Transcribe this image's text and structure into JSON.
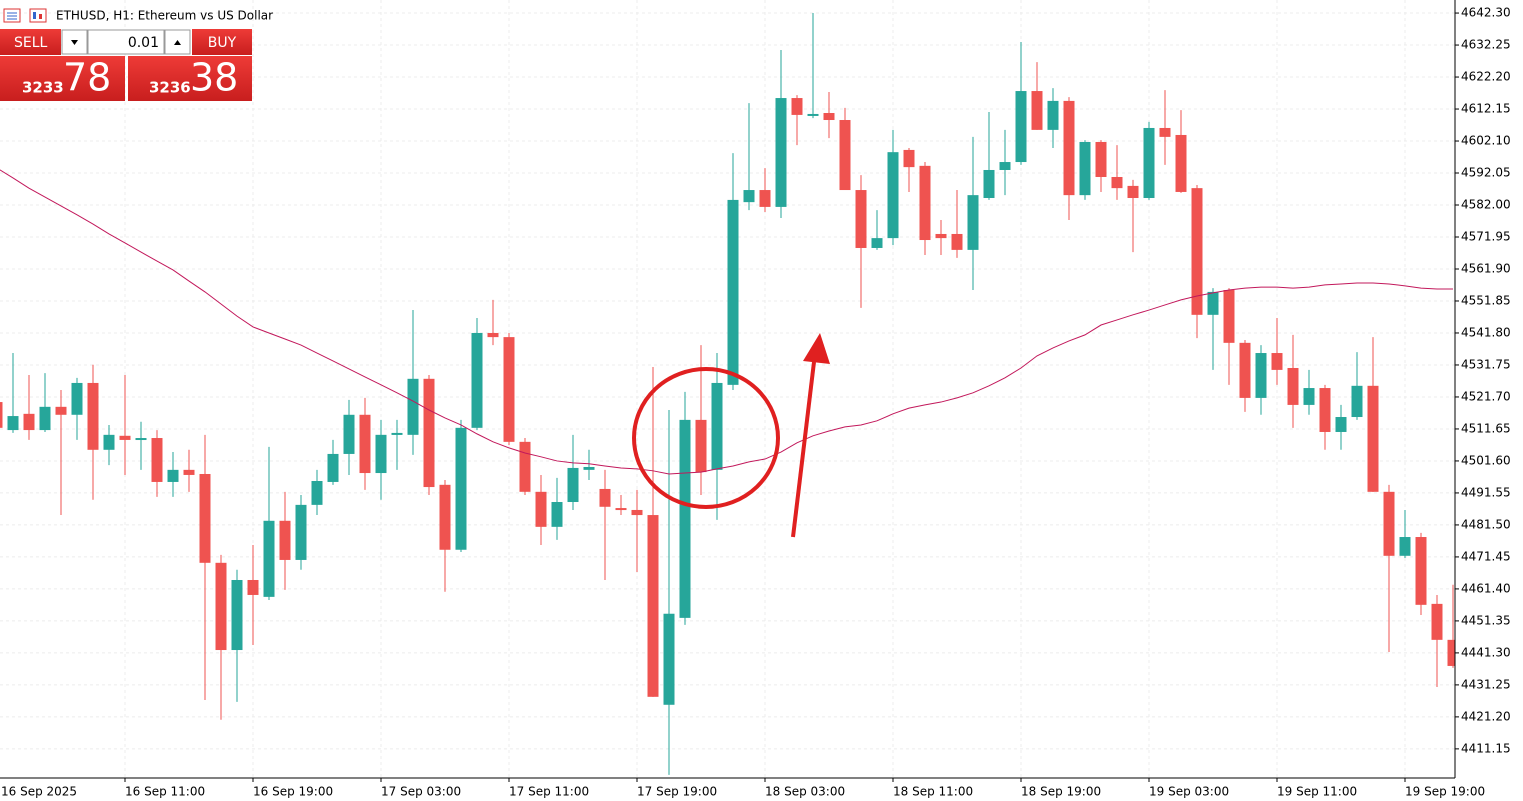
{
  "header": {
    "title": "ETHUSD, H1:  Ethereum vs US Dollar"
  },
  "trade_panel": {
    "sell": "SELL",
    "buy": "BUY",
    "volume": "0.01",
    "sell_price_major": "3233",
    "sell_price_minor": "78",
    "buy_price_major": "3236",
    "buy_price_minor": "38"
  },
  "chart_data": {
    "type": "candlestick",
    "categories": [
      "16 Sep 2025",
      null,
      null,
      null,
      null,
      null,
      null,
      null,
      "16 Sep 11:00",
      null,
      null,
      null,
      null,
      null,
      null,
      null,
      "16 Sep 19:00",
      null,
      null,
      null,
      null,
      null,
      null,
      null,
      "17 Sep 03:00",
      null,
      null,
      null,
      null,
      null,
      null,
      null,
      "17 Sep 11:00",
      null,
      null,
      null,
      null,
      null,
      null,
      null,
      "17 Sep 19:00",
      null,
      null,
      null,
      null,
      null,
      null,
      null,
      "18 Sep 03:00",
      null,
      null,
      null,
      null,
      null,
      null,
      null,
      "18 Sep 11:00",
      null,
      null,
      null,
      null,
      null,
      null,
      null,
      "18 Sep 19:00",
      null,
      null,
      null,
      null,
      null,
      null,
      null,
      "19 Sep 03:00",
      null,
      null,
      null,
      null,
      null,
      null,
      null,
      "19 Sep 11:00",
      null,
      null,
      null,
      null,
      null,
      null,
      null,
      "19 Sep 19:00",
      null,
      null,
      null
    ],
    "open": [
      4520.1,
      4511.3,
      4516.4,
      4511.3,
      4518.6,
      4516.1,
      4526.1,
      4505.1,
      4509.5,
      4508.2,
      4508.8,
      4495.0,
      4498.8,
      4497.5,
      4469.6,
      4442.2,
      4464.2,
      4458.9,
      4482.8,
      4470.5,
      4487.8,
      4495.0,
      4503.8,
      4516.1,
      4497.8,
      4509.8,
      4509.8,
      4527.4,
      4494.1,
      4473.7,
      4512.0,
      4541.8,
      4540.5,
      4507.6,
      4491.9,
      4480.9,
      4488.7,
      4498.8,
      4492.8,
      4486.8,
      4486.2,
      4484.6,
      4425.0,
      4452.3,
      4514.5,
      4498.8,
      4525.5,
      4582.9,
      4586.7,
      4581.4,
      4615.6,
      4610.0,
      4610.9,
      4608.7,
      4586.7,
      4568.5,
      4571.6,
      4599.3,
      4594.3,
      4572.9,
      4572.9,
      4567.9,
      4584.2,
      4593.0,
      4595.5,
      4617.8,
      4605.6,
      4614.7,
      4585.1,
      4601.8,
      4590.8,
      4588.0,
      4584.2,
      4606.2,
      4604.0,
      4587.3,
      4547.5,
      4555.3,
      4538.7,
      4521.4,
      4535.5,
      4530.8,
      4519.2,
      4524.5,
      4510.7,
      4515.4,
      4525.2,
      4491.9,
      4471.8,
      4477.7,
      4456.7,
      4445.4
    ],
    "high": [
      4522.3,
      4535.5,
      4528.6,
      4529.2,
      4523.9,
      4527.7,
      4531.8,
      4512.9,
      4528.6,
      4513.9,
      4511.3,
      4504.4,
      4505.1,
      4509.8,
      4472.1,
      4467.4,
      4475.2,
      4506.0,
      4491.9,
      4490.9,
      4498.8,
      4508.2,
      4520.8,
      4521.4,
      4514.5,
      4514.5,
      4549.0,
      4528.6,
      4495.6,
      4514.5,
      4546.5,
      4552.2,
      4541.8,
      4508.8,
      4497.2,
      4496.3,
      4509.8,
      4505.1,
      4498.8,
      4490.9,
      4492.5,
      4531.1,
      4517.6,
      4523.3,
      4538.0,
      4535.5,
      4598.3,
      4614.0,
      4593.6,
      4630.7,
      4616.5,
      4642.3,
      4617.5,
      4612.5,
      4591.4,
      4580.4,
      4605.6,
      4599.9,
      4595.5,
      4577.3,
      4586.7,
      4603.4,
      4611.2,
      4605.6,
      4633.2,
      4626.9,
      4618.7,
      4615.9,
      4602.4,
      4602.4,
      4600.8,
      4589.9,
      4608.1,
      4618.1,
      4611.8,
      4588.3,
      4555.9,
      4555.9,
      4539.6,
      4538.0,
      4546.5,
      4541.2,
      4530.2,
      4525.5,
      4519.2,
      4535.8,
      4540.5,
      4494.1,
      4486.2,
      4479.0,
      4459.5,
      4462.7
    ],
    "low": [
      4508.2,
      4510.4,
      4508.2,
      4510.7,
      4484.6,
      4508.2,
      4489.4,
      4500.3,
      4497.2,
      4498.8,
      4490.3,
      4490.3,
      4491.9,
      4426.5,
      4420.3,
      4425.9,
      4443.8,
      4457.9,
      4461.1,
      4467.4,
      4484.6,
      4494.1,
      4497.2,
      4492.5,
      4489.4,
      4498.8,
      4503.5,
      4490.9,
      4460.5,
      4473.0,
      4511.3,
      4538.0,
      4506.6,
      4490.9,
      4475.2,
      4476.8,
      4486.2,
      4495.6,
      4464.2,
      4484.6,
      4466.7,
      4427.5,
      4403.0,
      4450.1,
      4490.9,
      4483.1,
      4523.9,
      4580.4,
      4579.8,
      4577.9,
      4600.8,
      4609.3,
      4603.0,
      4586.7,
      4549.7,
      4567.9,
      4569.4,
      4586.1,
      4566.3,
      4566.3,
      4565.4,
      4555.3,
      4583.6,
      4585.1,
      4594.6,
      4605.6,
      4599.9,
      4577.3,
      4583.6,
      4586.1,
      4583.6,
      4567.2,
      4583.6,
      4594.6,
      4585.8,
      4540.2,
      4530.2,
      4525.5,
      4517.0,
      4516.1,
      4525.5,
      4512.0,
      4516.1,
      4505.1,
      4505.1,
      4514.5,
      4491.9,
      4441.6,
      4471.1,
      4453.2,
      4430.6,
      4436.6
    ],
    "close": [
      4512.0,
      4515.7,
      4511.3,
      4518.6,
      4516.1,
      4526.1,
      4505.1,
      4509.8,
      4508.2,
      4508.8,
      4495.0,
      4498.8,
      4497.2,
      4469.6,
      4442.2,
      4464.2,
      4459.5,
      4482.8,
      4470.5,
      4487.8,
      4495.3,
      4503.8,
      4516.1,
      4497.8,
      4509.8,
      4510.4,
      4527.4,
      4493.4,
      4473.7,
      4512.0,
      4541.8,
      4540.5,
      4507.6,
      4491.9,
      4480.9,
      4488.7,
      4499.4,
      4499.7,
      4487.2,
      4486.2,
      4484.6,
      4427.5,
      4453.6,
      4514.5,
      4498.1,
      4526.1,
      4583.6,
      4586.7,
      4581.4,
      4615.6,
      4610.3,
      4610.6,
      4608.7,
      4586.7,
      4568.5,
      4571.6,
      4598.6,
      4593.9,
      4571.0,
      4571.6,
      4567.9,
      4585.1,
      4593.0,
      4595.5,
      4617.8,
      4605.6,
      4614.7,
      4585.1,
      4601.8,
      4590.8,
      4587.3,
      4584.2,
      4606.2,
      4603.4,
      4586.1,
      4547.5,
      4554.7,
      4538.7,
      4521.4,
      4535.5,
      4530.2,
      4519.2,
      4524.5,
      4510.7,
      4515.4,
      4525.2,
      4491.9,
      4471.8,
      4477.7,
      4456.4,
      4445.4,
      4437.2
    ],
    "up_color": "#26a69a",
    "down_color": "#ef5350",
    "ma": {
      "color": "#c2185b",
      "values": [
        4593.6,
        4590.5,
        4587.3,
        4584.5,
        4581.7,
        4578.9,
        4576.0,
        4572.9,
        4570.1,
        4567.2,
        4564.4,
        4561.6,
        4558.1,
        4554.7,
        4550.9,
        4547.1,
        4543.7,
        4541.8,
        4539.9,
        4538.0,
        4535.5,
        4533.0,
        4530.5,
        4528.0,
        4525.5,
        4523.0,
        4520.4,
        4517.6,
        4515.1,
        4512.9,
        4510.1,
        4507.6,
        4505.7,
        4504.1,
        4502.9,
        4501.6,
        4501.0,
        4500.7,
        4500.0,
        4499.4,
        4499.1,
        4498.5,
        4497.5,
        4497.8,
        4498.1,
        4499.1,
        4500.0,
        4501.3,
        4502.2,
        4504.4,
        4507.3,
        4509.5,
        4511.0,
        4512.3,
        4512.9,
        4514.2,
        4516.4,
        4518.2,
        4519.2,
        4520.1,
        4521.4,
        4523.0,
        4525.2,
        4527.7,
        4530.8,
        4534.6,
        4537.1,
        4539.3,
        4541.2,
        4544.3,
        4545.9,
        4547.5,
        4549.0,
        4550.6,
        4552.2,
        4553.4,
        4554.4,
        4555.3,
        4555.9,
        4556.2,
        4556.2,
        4555.9,
        4556.2,
        4556.9,
        4557.2,
        4557.5,
        4557.5,
        4557.2,
        4556.6,
        4555.9,
        4555.6,
        4555.6
      ]
    },
    "ylim": [
      4402.0,
      4646.4
    ],
    "yticks": [
      {
        "value": 4642.3,
        "label": "4642.30"
      },
      4632.25,
      {
        "value": 4622.2,
        "label": "4622.20"
      },
      4612.15,
      {
        "value": 4602.1,
        "label": "4602.10"
      },
      4592.05,
      {
        "value": 4582,
        "label": "4582.00"
      },
      4571.95,
      {
        "value": 4561.9,
        "label": "4561.90"
      },
      4551.85,
      {
        "value": 4541.8,
        "label": "4541.80"
      },
      4531.75,
      {
        "value": 4521.7,
        "label": "4521.70"
      },
      4511.65,
      {
        "value": 4501.6,
        "label": "4501.60"
      },
      4491.55,
      {
        "value": 4481.5,
        "label": "4481.50"
      },
      4471.45,
      {
        "value": 4461.4,
        "label": "4461.40"
      },
      4451.35,
      {
        "value": 4441.3,
        "label": "4441.30"
      },
      4431.25,
      {
        "value": 4421.2,
        "label": "4421.20"
      },
      4411.15
    ],
    "grid": true
  }
}
